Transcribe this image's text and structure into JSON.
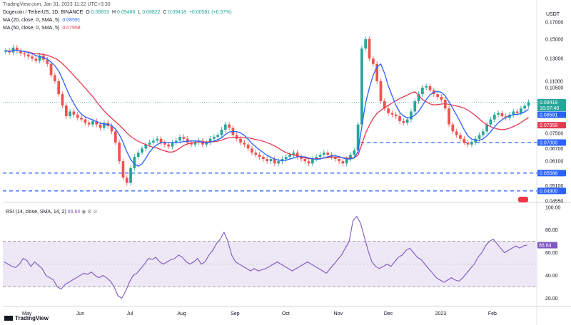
{
  "header": {
    "published": "TradingView.com, Jan 31, 2023 11:22 UTC+3:30",
    "title": "Dogecoin / TetherUS, 1D, BINANCE",
    "ohlc": {
      "o_label": "O",
      "o": "0.08833",
      "h_label": "H",
      "h": "0.09486",
      "l_label": "L",
      "l": "0.08822",
      "c_label": "C",
      "c": "0.09418",
      "change": "+0.00581 (+6.57%)"
    },
    "ma20": {
      "label": "MA (20, close, 0, SMA, 5)",
      "value": "0.08591"
    },
    "ma50": {
      "label": "MA (50, close, 0, SMA, 5)",
      "value": "0.07958"
    }
  },
  "rsi_header": {
    "label": "RSI (14, close, SMA, 14, 2)",
    "value": "66.64"
  },
  "currency": "USDT",
  "footer_brand": "TradingView",
  "colors": {
    "up": "#26a69a",
    "down": "#ef5350",
    "ma20": "#2962ff",
    "ma50": "#e53950",
    "rsi": "#7e57c2",
    "rsi_band": "#ede7f6",
    "level": "#2962ff"
  },
  "chart_data": [
    {
      "type": "candlestick",
      "title": "Dogecoin / TetherUS, 1D, BINANCE",
      "ylabel": "USDT",
      "scale": "log",
      "ylim": [
        0.0455,
        0.19
      ],
      "y_ticks": [
        "0.17000",
        "0.15000",
        "0.13000",
        "0.11000",
        "0.10500",
        "0.09500",
        "0.08500",
        "0.07500",
        "0.06700",
        "0.06100",
        "0.05100",
        "0.04550"
      ],
      "x_ticks": [
        "May",
        "Jun",
        "Jul",
        "Aug",
        "Sep",
        "Oct",
        "Nov",
        "Dec",
        "2023",
        "Feb"
      ],
      "series_close": [
        0.138,
        0.136,
        0.141,
        0.138,
        0.135,
        0.134,
        0.132,
        0.13,
        0.128,
        0.133,
        0.129,
        0.125,
        0.115,
        0.11,
        0.1,
        0.092,
        0.085,
        0.088,
        0.086,
        0.084,
        0.083,
        0.081,
        0.08,
        0.082,
        0.08,
        0.078,
        0.081,
        0.079,
        0.076,
        0.07,
        0.061,
        0.054,
        0.052,
        0.058,
        0.063,
        0.065,
        0.067,
        0.069,
        0.07,
        0.071,
        0.072,
        0.07,
        0.069,
        0.068,
        0.07,
        0.071,
        0.073,
        0.072,
        0.07,
        0.069,
        0.07,
        0.071,
        0.069,
        0.07,
        0.072,
        0.073,
        0.074,
        0.077,
        0.08,
        0.078,
        0.074,
        0.072,
        0.07,
        0.069,
        0.067,
        0.065,
        0.064,
        0.063,
        0.062,
        0.061,
        0.062,
        0.06,
        0.061,
        0.062,
        0.063,
        0.064,
        0.065,
        0.063,
        0.062,
        0.061,
        0.06,
        0.062,
        0.063,
        0.064,
        0.065,
        0.064,
        0.063,
        0.062,
        0.061,
        0.06,
        0.062,
        0.064,
        0.066,
        0.08,
        0.14,
        0.15,
        0.13,
        0.125,
        0.11,
        0.095,
        0.09,
        0.087,
        0.086,
        0.085,
        0.082,
        0.081,
        0.083,
        0.088,
        0.095,
        0.1,
        0.105,
        0.106,
        0.103,
        0.1,
        0.098,
        0.096,
        0.09,
        0.08,
        0.076,
        0.074,
        0.072,
        0.07,
        0.069,
        0.07,
        0.072,
        0.074,
        0.076,
        0.08,
        0.083,
        0.086,
        0.087,
        0.085,
        0.084,
        0.086,
        0.088,
        0.087,
        0.09,
        0.0918,
        0.0942
      ],
      "ma20_value": 0.08591,
      "ma50_value": 0.07958,
      "horizontal_levels": [
        0.07,
        0.05588,
        0.049
      ],
      "price_tags": [
        {
          "label": "0.09418",
          "value": 0.09418,
          "sub": "16:07:40"
        },
        {
          "label": "0.08591",
          "value": 0.08591
        },
        {
          "label": "0.07958",
          "value": 0.07958
        },
        {
          "label": "0.07000",
          "value": 0.07
        },
        {
          "label": "0.05588",
          "value": 0.05588
        },
        {
          "label": "0.04900",
          "value": 0.049
        }
      ]
    },
    {
      "type": "line",
      "title": "RSI (14, close, SMA, 14, 2)",
      "ylim": [
        14,
        103
      ],
      "y_ticks": [
        "100.00",
        "80.00",
        "60.00",
        "40.00",
        "20.00"
      ],
      "band": [
        30,
        70
      ],
      "midline": 50,
      "current": 66.64,
      "values": [
        52,
        50,
        48,
        47,
        50,
        55,
        53,
        48,
        52,
        49,
        46,
        40,
        38,
        36,
        30,
        28,
        32,
        34,
        36,
        38,
        40,
        42,
        41,
        43,
        40,
        38,
        40,
        38,
        35,
        30,
        22,
        20,
        26,
        34,
        40,
        42,
        46,
        50,
        55,
        54,
        56,
        52,
        50,
        52,
        54,
        55,
        58,
        56,
        52,
        50,
        52,
        55,
        50,
        52,
        58,
        62,
        68,
        72,
        78,
        70,
        58,
        52,
        50,
        48,
        46,
        44,
        46,
        44,
        45,
        46,
        48,
        50,
        52,
        50,
        48,
        46,
        44,
        46,
        48,
        50,
        52,
        50,
        48,
        46,
        44,
        42,
        46,
        50,
        54,
        58,
        64,
        70,
        88,
        92,
        86,
        74,
        62,
        52,
        48,
        46,
        48,
        50,
        48,
        52,
        56,
        58,
        62,
        64,
        60,
        56,
        54,
        50,
        46,
        42,
        38,
        36,
        34,
        36,
        38,
        36,
        35,
        38,
        42,
        46,
        50,
        56,
        60,
        66,
        70,
        72,
        68,
        64,
        60,
        62,
        64,
        66,
        64,
        66,
        66.64
      ]
    }
  ]
}
